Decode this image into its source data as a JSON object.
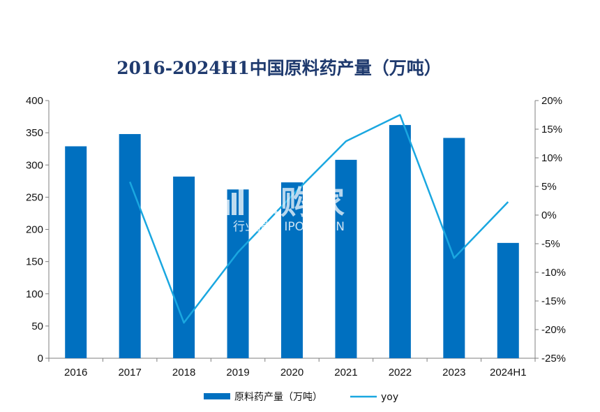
{
  "chart_data": {
    "type": "bar+line",
    "title": "2016-2024H1中国原料药产量（万吨）",
    "categories": [
      "2016",
      "2017",
      "2018",
      "2019",
      "2020",
      "2021",
      "2022",
      "2023",
      "2024H1"
    ],
    "series": [
      {
        "name": "原料药产量（万吨）",
        "type": "bar",
        "axis": "left",
        "color": "#0070c0",
        "values": [
          329,
          348,
          282,
          262,
          273,
          308,
          362,
          342,
          179
        ]
      },
      {
        "name": "yoy",
        "type": "line",
        "axis": "right",
        "color": "#1aa7e0",
        "values": [
          null,
          5.8,
          -18.8,
          -6.5,
          3.4,
          12.9,
          17.5,
          -7.5,
          2.3
        ]
      }
    ],
    "left_axis": {
      "min": 0,
      "max": 400,
      "step": 50,
      "ticks": [
        "0",
        "50",
        "100",
        "150",
        "200",
        "250",
        "300",
        "350",
        "400"
      ]
    },
    "right_axis": {
      "min": -25,
      "max": 20,
      "step": 5,
      "ticks": [
        "-25%",
        "-20%",
        "-15%",
        "-10%",
        "-5%",
        "0%",
        "5%",
        "10%",
        "15%",
        "20%"
      ]
    },
    "grid": false,
    "legend_position": "bottom-center"
  },
  "watermark": {
    "brand": "帐购家",
    "tagline": "行业报告 IPOIPO.CN"
  }
}
